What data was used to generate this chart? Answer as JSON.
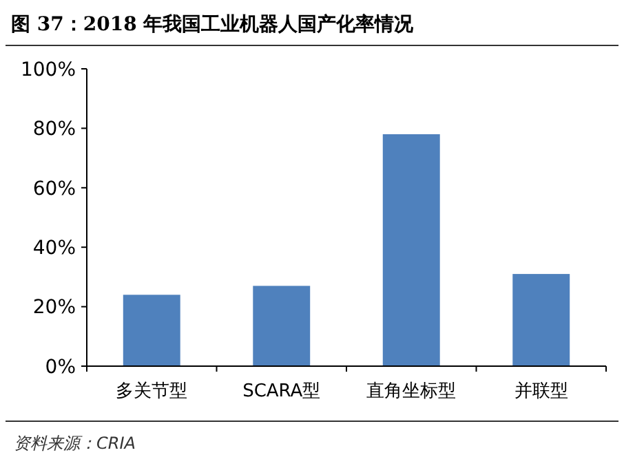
{
  "chart_data": {
    "type": "bar",
    "title": "图 37：2018 年我国工业机器人国产化率情况",
    "categories": [
      "多关节型",
      "SCARA型",
      "直角坐标型",
      "并联型"
    ],
    "values": [
      24,
      27,
      78,
      31
    ],
    "color": "#4f81bd",
    "ylim": [
      0,
      100
    ],
    "yticks": [
      {
        "value": 0,
        "label": "0%"
      },
      {
        "value": 20,
        "label": "20%"
      },
      {
        "value": 40,
        "label": "40%"
      },
      {
        "value": 60,
        "label": "60%"
      },
      {
        "value": 80,
        "label": "80%"
      },
      {
        "value": 100,
        "label": "100%"
      }
    ],
    "annotations": [
      "资料来源：CRIA"
    ]
  }
}
